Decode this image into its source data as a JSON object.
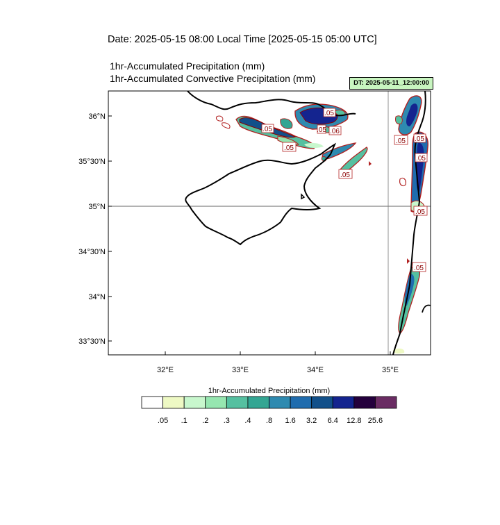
{
  "header": {
    "date_line": "Date: 2025-05-15  08:00 Local Time [2025-05-15  05:00 UTC]",
    "line1": "1hr-Accumulated Precipitation   (mm)",
    "line2": "1hr-Accumulated Convective Precipitation   (mm)",
    "dt_label": "DT: 2025-05-11_12:00:00"
  },
  "map": {
    "lat_labels": [
      "36°N",
      "35°30'N",
      "35°N",
      "34°30'N",
      "34°N",
      "33°30'N"
    ],
    "lon_labels": [
      "32°E",
      "33°E",
      "34°E",
      "35°E"
    ],
    "contour_labels": [
      ".05",
      ".05",
      ".06",
      ".05",
      ".05",
      ".05",
      ".05",
      ".05",
      ".05",
      ".05",
      ".05"
    ],
    "coastline_color": "#000000",
    "contour_color": "#b22222"
  },
  "colorbar": {
    "title": "1hr-Accumulated Precipitation  (mm)",
    "labels": [
      ".05",
      ".1",
      ".2",
      ".3",
      ".4",
      ".8",
      "1.6",
      "3.2",
      "6.4",
      "12.8",
      "25.6"
    ],
    "colors": [
      "#ffffff",
      "#eef9c4",
      "#c8f7cd",
      "#96e6b0",
      "#55c0a0",
      "#33a693",
      "#2e8ab0",
      "#1f6cae",
      "#12508a",
      "#14248f",
      "#24003c",
      "#6a2c63"
    ]
  }
}
